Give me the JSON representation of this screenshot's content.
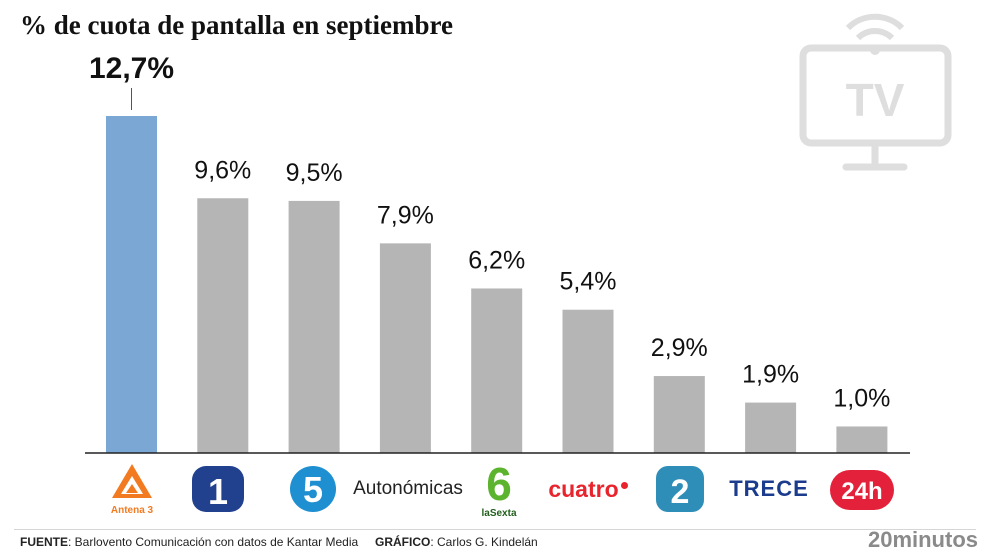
{
  "chart_data": {
    "type": "bar",
    "title": "% de cuota de pantalla en septiembre",
    "categories": [
      "Antena 3",
      "La 1",
      "Telecinco",
      "Autonómicas",
      "laSexta",
      "cuatro",
      "La 2",
      "TRECE",
      "24h"
    ],
    "values": [
      12.7,
      9.6,
      9.5,
      7.9,
      6.2,
      5.4,
      2.9,
      1.9,
      1.0
    ],
    "value_labels": [
      "12,7%",
      "9,6%",
      "9,5%",
      "7,9%",
      "6,2%",
      "5,4%",
      "2,9%",
      "1,9%",
      "1,0%"
    ],
    "highlight_index": 0,
    "colors": {
      "highlight": "#7ba7d4",
      "bar": "#b5b5b5",
      "baseline": "#222222"
    },
    "ylim": [
      0,
      12.7
    ],
    "grid": false
  },
  "logos": {
    "antena3": "Antena 3",
    "la1": "1",
    "telecinco": "5",
    "autonomicas": "Autonómicas",
    "lasexta_digit": "6",
    "lasexta_text": "laSexta",
    "cuatro": "cuatro",
    "la2": "2",
    "trece": "TRECE",
    "canal24h": "24h"
  },
  "icon": "tv-icon",
  "tv_icon_text": "TV",
  "footer": {
    "source_label": "FUENTE",
    "source_text": ": Barlovento Comunicación con datos de Kantar Media",
    "credit_label": "GRÁFICO",
    "credit_text": ": Carlos G. Kindelán",
    "brand": "20minutos"
  }
}
